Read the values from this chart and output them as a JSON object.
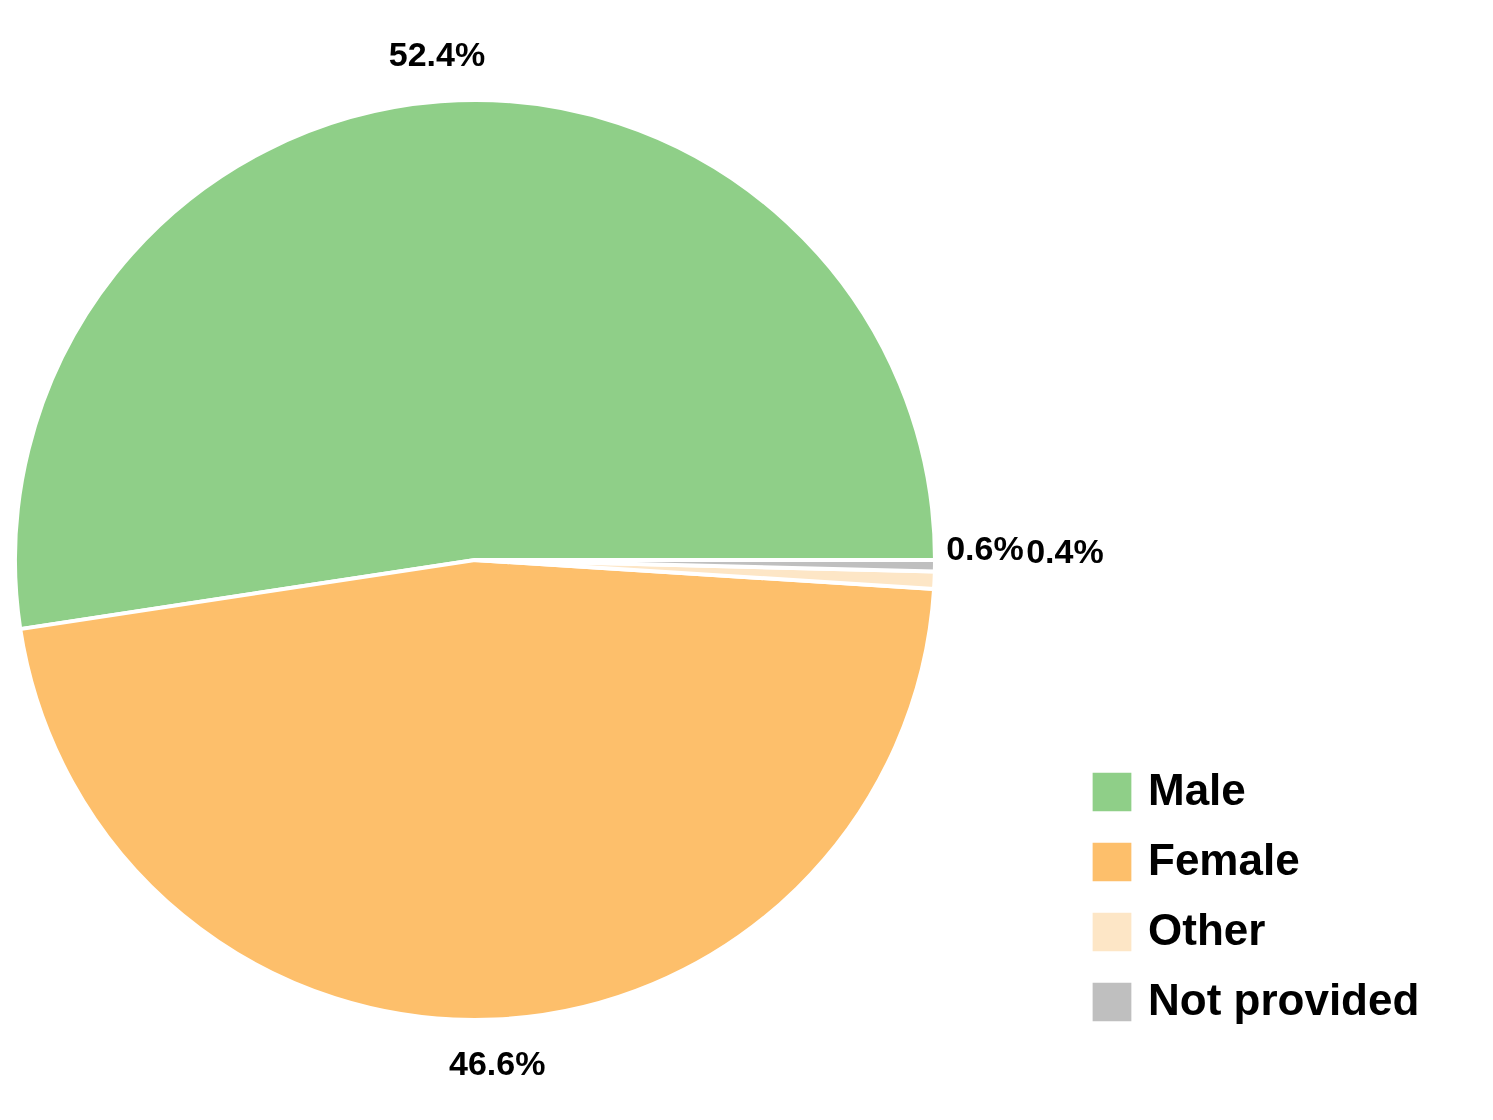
{
  "chart_data": {
    "type": "pie",
    "categories": [
      "Male",
      "Female",
      "Other",
      "Not provided"
    ],
    "values": [
      52.4,
      46.6,
      0.6,
      0.4
    ],
    "value_labels": [
      "52.4%",
      "46.6%",
      "0.6%",
      "0.4%"
    ],
    "colors": [
      "#8fcf88",
      "#fdbf6b",
      "#fde6c6",
      "#bfbfbf"
    ],
    "legend": "bottom right"
  }
}
